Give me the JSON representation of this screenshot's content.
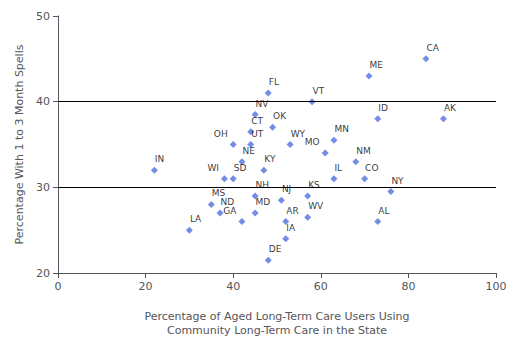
{
  "chart_data": {
    "type": "scatter",
    "xlabel": "Percentage of Aged Long-Term Care Users Using\nCommunity Long-Term Care in the State",
    "ylabel": "Percentage With 1 to 3 Month Spells",
    "x": [
      22,
      30,
      35,
      37,
      38,
      40,
      42,
      40,
      42,
      45,
      45,
      44,
      44,
      45,
      47,
      49,
      48,
      51,
      48,
      52,
      52,
      53,
      57,
      57,
      58,
      61,
      63,
      63,
      71,
      73,
      68,
      70,
      73,
      76,
      84,
      88
    ],
    "values": [
      32,
      25,
      28,
      27,
      31,
      31,
      26,
      35,
      33,
      27,
      29,
      35,
      36.5,
      38.5,
      32,
      37,
      41,
      28.5,
      21.5,
      24,
      26,
      35,
      29,
      26.5,
      40,
      34,
      35.5,
      31,
      43,
      38,
      33,
      31,
      26,
      29.5,
      45,
      38
    ],
    "labels": [
      "IN",
      "LA",
      "MS",
      "ND",
      "WI",
      "SD",
      "GA",
      "OH",
      "NE",
      "MD",
      "NH",
      "UT",
      "CT",
      "NV",
      "KY",
      "OK",
      "FL",
      "NJ",
      "DE",
      "IA",
      "AR",
      "WY",
      "KS",
      "WV",
      "VT",
      "MO",
      "MN",
      "IL",
      "ME",
      "ID",
      "NM",
      "CO",
      "AL",
      "NY",
      "CA",
      "AK"
    ],
    "xlim": [
      0,
      100
    ],
    "ylim": [
      20,
      50
    ],
    "xticks": [
      0,
      20,
      40,
      60,
      80,
      100
    ],
    "yticks": [
      20,
      30,
      40,
      50
    ],
    "hlines": [
      30,
      40
    ],
    "marker": "diamond",
    "grid": false
  }
}
